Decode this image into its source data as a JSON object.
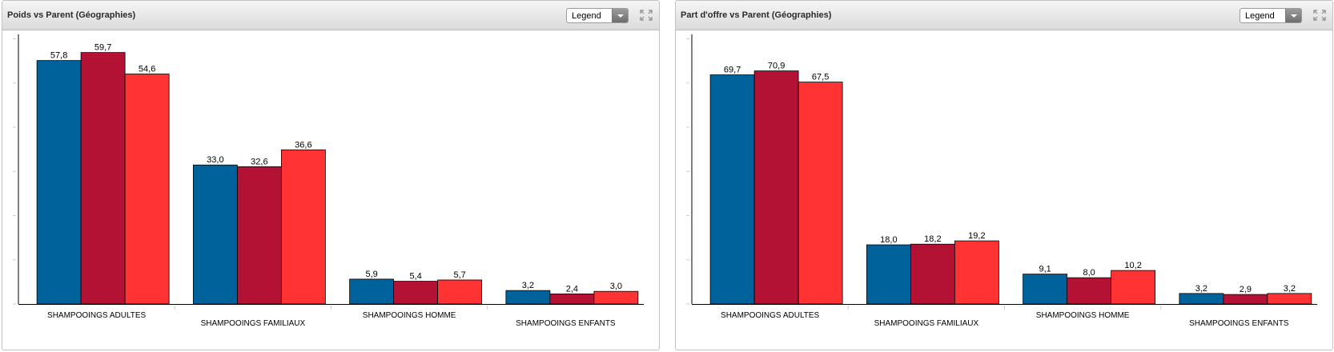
{
  "panels": [
    {
      "title": "Poids vs Parent (Géographies)",
      "legend_label": "Legend"
    },
    {
      "title": "Part d'offre vs Parent (Géographies)",
      "legend_label": "Legend"
    }
  ],
  "colors": {
    "series": [
      "#00629b",
      "#b31234",
      "#ff3333"
    ],
    "axis": "#000000",
    "tick": "#cccccc"
  },
  "chart_data": [
    {
      "type": "bar",
      "categories": [
        "SHAMPOOINGS ADULTES",
        "SHAMPOOINGS FAMILIAUX",
        "SHAMPOOINGS HOMME",
        "SHAMPOOINGS ENFANTS"
      ],
      "series": [
        {
          "values": [
            57.8,
            33.0,
            5.9,
            3.2
          ],
          "labels": [
            "57,8",
            "33,0",
            "5,9",
            "3,2"
          ]
        },
        {
          "values": [
            59.7,
            32.6,
            5.4,
            2.4
          ],
          "labels": [
            "59,7",
            "32,6",
            "5,4",
            "2,4"
          ]
        },
        {
          "values": [
            54.6,
            36.6,
            5.7,
            3.0
          ],
          "labels": [
            "54,6",
            "36,6",
            "5,7",
            "3,0"
          ]
        }
      ],
      "ylim": [
        0,
        64
      ],
      "legend": "collapsed"
    },
    {
      "type": "bar",
      "categories": [
        "SHAMPOOINGS ADULTES",
        "SHAMPOOINGS FAMILIAUX",
        "SHAMPOOINGS HOMME",
        "SHAMPOOINGS ENFANTS"
      ],
      "series": [
        {
          "values": [
            69.7,
            18.0,
            9.1,
            3.2
          ],
          "labels": [
            "69,7",
            "18,0",
            "9,1",
            "3,2"
          ]
        },
        {
          "values": [
            70.9,
            18.2,
            8.0,
            2.9
          ],
          "labels": [
            "70,9",
            "18,2",
            "8,0",
            "2,9"
          ]
        },
        {
          "values": [
            67.5,
            19.2,
            10.2,
            3.2
          ],
          "labels": [
            "67,5",
            "19,2",
            "10,2",
            "3,2"
          ]
        }
      ],
      "ylim": [
        0,
        82
      ],
      "legend": "collapsed"
    }
  ]
}
